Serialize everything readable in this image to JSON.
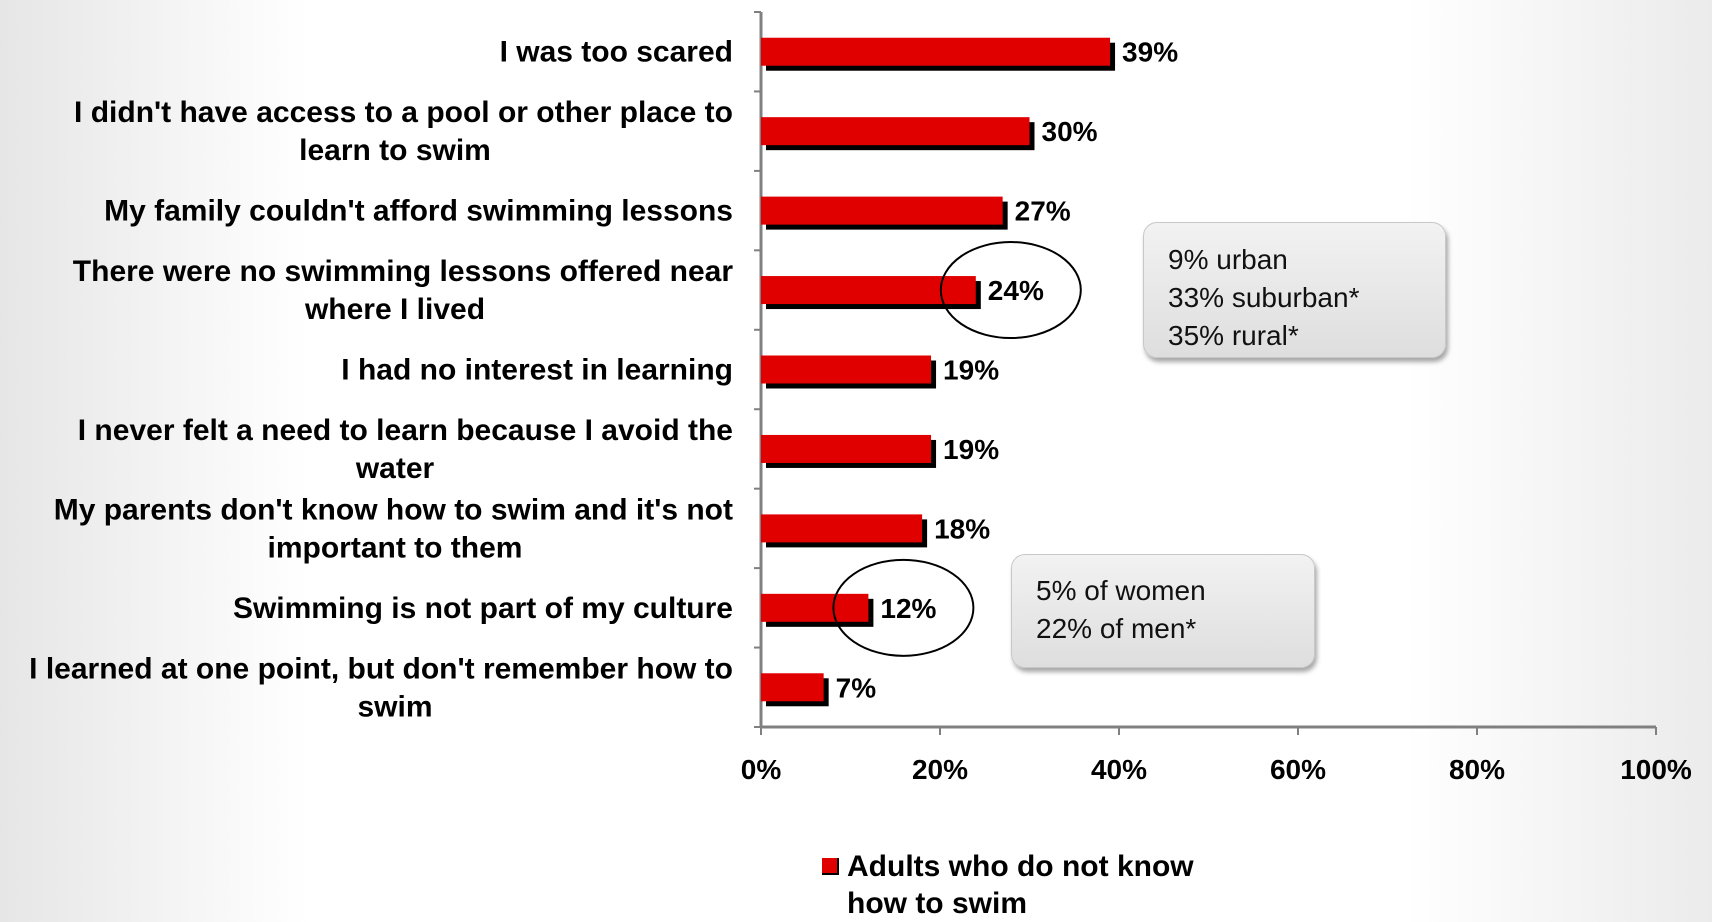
{
  "chart_data": {
    "type": "bar",
    "orientation": "horizontal",
    "categories": [
      [
        "I was too scared"
      ],
      [
        "I didn't have access to a pool or other place to",
        "learn to swim"
      ],
      [
        "My family couldn't afford swimming lessons"
      ],
      [
        "There were no swimming lessons offered near",
        "where I lived"
      ],
      [
        "I had no interest in learning"
      ],
      [
        "I never felt a need to learn because I avoid the",
        "water"
      ],
      [
        "My parents don't know how to swim and it's not",
        "important to them"
      ],
      [
        "Swimming is not part of my culture"
      ],
      [
        "I learned at one point, but don't remember how to",
        "swim"
      ]
    ],
    "series": [
      {
        "name": "Adults who do not know how to swim",
        "values": [
          39,
          30,
          27,
          24,
          19,
          19,
          18,
          12,
          7
        ],
        "color": "#e00000"
      }
    ],
    "data_labels": [
      "39%",
      "30%",
      "27%",
      "24%",
      "19%",
      "19%",
      "18%",
      "12%",
      "7%"
    ],
    "x_ticks": [
      "0%",
      "20%",
      "40%",
      "60%",
      "80%",
      "100%"
    ],
    "xlim": [
      0,
      100
    ],
    "xlabel": "",
    "ylabel": "",
    "title": "",
    "legend_position": "bottom",
    "grid": false,
    "highlighted_categories": [
      3,
      7
    ]
  },
  "legend": {
    "label_line1": "Adults who do not know",
    "label_line2": "how to swim"
  },
  "callouts": {
    "location": {
      "line1": "9% urban",
      "line2": "33% suburban*",
      "line3": "35% rural*"
    },
    "gender": {
      "line1": "5% of women",
      "line2": "22% of men*"
    }
  },
  "colors": {
    "bar": "#e00000",
    "bar_shadow": "#000000",
    "axis": "#808080"
  }
}
